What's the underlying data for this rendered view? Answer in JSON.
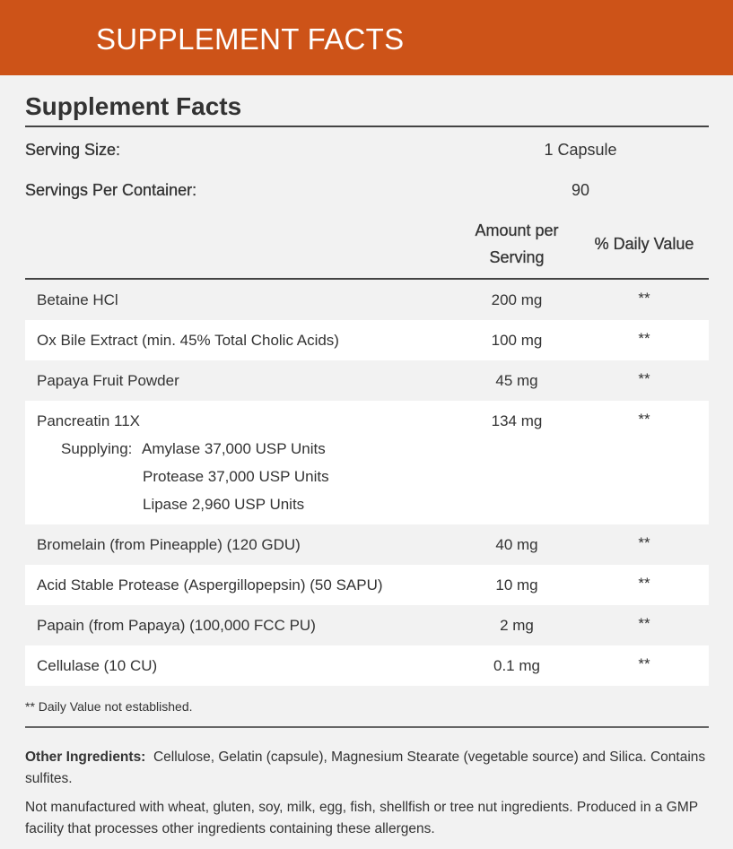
{
  "banner": {
    "title": "SUPPLEMENT FACTS"
  },
  "facts": {
    "heading": "Supplement Facts",
    "serving_size_label": "Serving Size:",
    "serving_size_value": "1 Capsule",
    "servings_per_container_label": "Servings Per Container:",
    "servings_per_container_value": "90",
    "col_amount_line1": "Amount per",
    "col_amount_line2": "Serving",
    "col_daily_value": "% Daily Value",
    "rows": [
      {
        "name": "Betaine HCl",
        "amount": "200 mg",
        "dv": "**"
      },
      {
        "name": "Ox Bile Extract (min. 45% Total Cholic Acids)",
        "amount": "100 mg",
        "dv": "**"
      },
      {
        "name": "Papaya Fruit Powder",
        "amount": "45 mg",
        "dv": "**"
      },
      {
        "name": "Pancreatin 11X",
        "amount": "134 mg",
        "dv": "**",
        "supplying_label": "Supplying:",
        "sub_items": [
          "Amylase 37,000 USP Units",
          "Protease 37,000 USP Units",
          "Lipase 2,960 USP Units"
        ]
      },
      {
        "name": "Bromelain (from Pineapple) (120 GDU)",
        "amount": "40 mg",
        "dv": "**"
      },
      {
        "name": "Acid Stable Protease (Aspergillopepsin) (50 SAPU)",
        "amount": "10 mg",
        "dv": "**"
      },
      {
        "name": "Papain (from Papaya) (100,000 FCC PU)",
        "amount": "2 mg",
        "dv": "**"
      },
      {
        "name": "Cellulase (10 CU)",
        "amount": "0.1 mg",
        "dv": "**"
      }
    ],
    "footnote": "** Daily Value not established."
  },
  "other_ingredients": {
    "label": "Other Ingredients:",
    "text": "Cellulose, Gelatin (capsule), Magnesium Stearate (vegetable source) and Silica. Contains sulfites."
  },
  "allergen_note": "Not manufactured with wheat, gluten, soy, milk, egg, fish, shellfish or tree nut ingredients. Produced in a GMP facility that processes other ingredients containing these allergens."
}
